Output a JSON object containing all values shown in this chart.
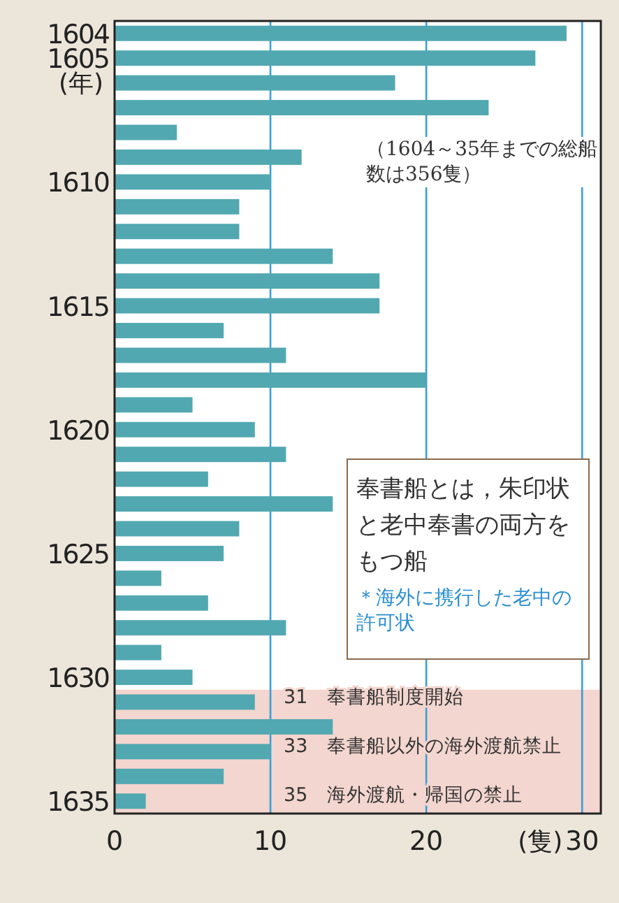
{
  "chart_data": {
    "type": "bar",
    "orientation": "horizontal",
    "xlabel": "(隻)",
    "ylabel": "(年)",
    "x": [
      1604,
      1605,
      1606,
      1607,
      1608,
      1609,
      1610,
      1611,
      1612,
      1613,
      1614,
      1615,
      1616,
      1617,
      1618,
      1619,
      1620,
      1621,
      1622,
      1623,
      1624,
      1625,
      1626,
      1627,
      1628,
      1629,
      1630,
      1631,
      1632,
      1633,
      1634,
      1635
    ],
    "values": [
      29,
      27,
      18,
      24,
      4,
      12,
      10,
      8,
      8,
      14,
      17,
      17,
      7,
      11,
      20,
      5,
      9,
      11,
      6,
      14,
      8,
      7,
      3,
      6,
      11,
      3,
      5,
      9,
      14,
      10,
      7,
      2
    ],
    "color": "#52a8b1",
    "xlim": [
      0,
      31.2
    ],
    "xticks": [
      0,
      10,
      20,
      30
    ],
    "ylim": [
      1635.5,
      1603.5
    ],
    "yticks": [
      1604,
      1605,
      1610,
      1615,
      1620,
      1625,
      1630,
      1635
    ],
    "grid": "x",
    "bands": [
      {
        "axis": "y",
        "from": 1630.5,
        "to": 1635.5,
        "color": "#f3d6cf"
      }
    ],
    "annotations": [
      "31　奉書船制度開始",
      "33　奉書船以外の海外渡航禁止",
      "35　海外渡航・帰国の禁止",
      "（1604～35年までの総船数は356隻）",
      "奉書船とは，朱印状と老中奉書の両方をもつ船",
      "＊海外に携行した老中の許可状"
    ]
  }
}
